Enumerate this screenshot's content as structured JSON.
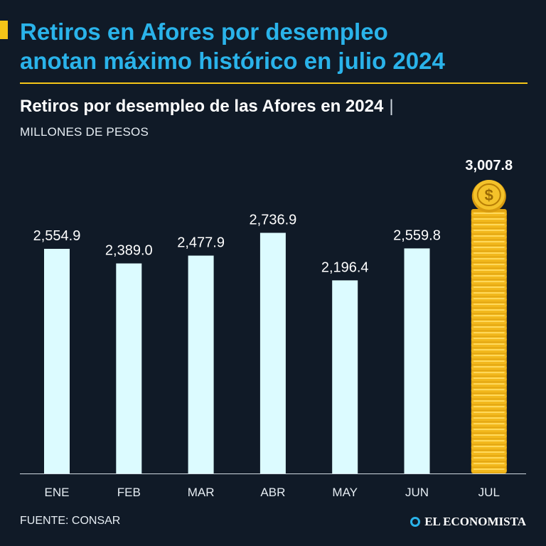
{
  "headline": {
    "line1": "Retiros en Afores por desempleo",
    "line2": "anotan máximo histórico en julio 2024"
  },
  "subtitle": "Retiros por desempleo de las Afores en 2024",
  "subtitle_separator": "|",
  "units_label": "MILLONES DE PESOS",
  "source": "FUENTE: CONSAR",
  "brand": "EL ECONOMISTA",
  "colors": {
    "background": "#101a27",
    "headline": "#2ab3ea",
    "accent": "#f5c518",
    "bar": "#dcfbff",
    "coin": "#f2b81c"
  },
  "chart_data": {
    "type": "bar",
    "title": "Retiros por desempleo de las Afores en 2024",
    "ylabel": "MILLONES DE PESOS",
    "xlabel": "",
    "categories": [
      "ENE",
      "FEB",
      "MAR",
      "ABR",
      "MAY",
      "JUN",
      "JUL"
    ],
    "values": [
      2554.9,
      2389.0,
      2477.9,
      2736.9,
      2196.4,
      2559.8,
      3007.8
    ],
    "value_labels": [
      "2,554.9",
      "2,389.0",
      "2,477.9",
      "2,736.9",
      "2,196.4",
      "2,559.8",
      "3,007.8"
    ],
    "highlight_index": 6,
    "ylim": [
      0,
      3007.8
    ],
    "grid": false
  }
}
